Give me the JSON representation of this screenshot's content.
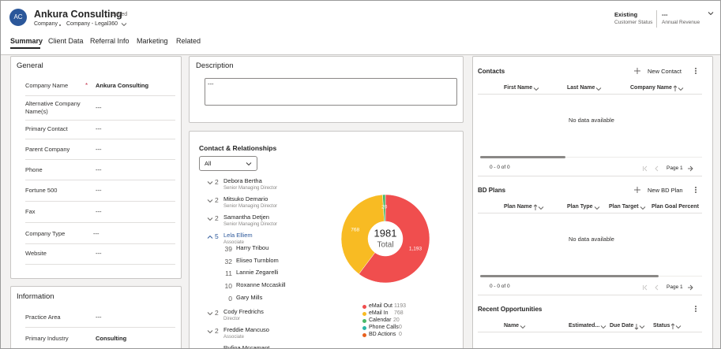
{
  "header": {
    "initials": "AC",
    "title": "Ankura Consulting",
    "status": "- Saved",
    "entity": "Company",
    "form": "Company - Legal360",
    "fields": [
      {
        "value": "Existing",
        "label": "Customer Status"
      },
      {
        "value": "---",
        "label": "Annual Revenue"
      }
    ]
  },
  "tabs": {
    "items": [
      "Summary",
      "Client Data",
      "Referral Info",
      "Marketing",
      "Related"
    ],
    "selected": 0
  },
  "general": {
    "title": "General",
    "required_mark": "*",
    "fields": [
      {
        "label": "Company Name",
        "value": "Ankura Consulting",
        "required": true
      },
      {
        "label": "Alternative Company Name(s)",
        "value": "---"
      },
      {
        "label": "Primary Contact",
        "value": "---"
      },
      {
        "label": "Parent Company",
        "value": "---"
      },
      {
        "label": "Phone",
        "value": "---"
      },
      {
        "label": "Fortune 500",
        "value": "---"
      },
      {
        "label": "Fax",
        "value": "---"
      },
      {
        "label": "Company Type",
        "value": "---"
      },
      {
        "label": "Website",
        "value": "---"
      }
    ]
  },
  "information": {
    "title": "Information",
    "fields": [
      {
        "label": "Practice Area",
        "value": "---"
      },
      {
        "label": "Primary Industry",
        "value": "Consulting"
      }
    ]
  },
  "description": {
    "title": "Description",
    "value": "---"
  },
  "contacts_relationships": {
    "title": "Contact & Relationships",
    "filter": "All",
    "people": [
      {
        "count": 2,
        "name": "Debora Bertha",
        "role": "Senior Managing Director",
        "expanded": false
      },
      {
        "count": 2,
        "name": "Mitsuko Demario",
        "role": "Senior Managing Director",
        "expanded": false
      },
      {
        "count": 2,
        "name": "Samantha Detjen",
        "role": "Senior Managing Director",
        "expanded": false
      },
      {
        "count": 5,
        "name": "Lela Elliem",
        "role": "Associate",
        "expanded": true,
        "children": [
          {
            "count": 39,
            "name": "Harry Tribou"
          },
          {
            "count": 32,
            "name": "Eliseo Turnblom"
          },
          {
            "count": 11,
            "name": "Lannie Zegarelli"
          },
          {
            "count": 10,
            "name": "Roxanne Mccaskill"
          },
          {
            "count": 0,
            "name": "Gary Mills"
          }
        ]
      },
      {
        "count": 2,
        "name": "Cody Fredrichs",
        "role": "Director",
        "expanded": false
      },
      {
        "count": 2,
        "name": "Freddie Mancuso",
        "role": "Associate",
        "expanded": false
      },
      {
        "name": "Rufina Mccamant"
      }
    ]
  },
  "chart_data": {
    "type": "donut",
    "total": 1981,
    "total_label": "Total",
    "categories": [
      "eMail Out",
      "eMail In",
      "Calendar",
      "Phone Calls",
      "BD Actions"
    ],
    "values": [
      1193,
      768,
      20,
      0,
      0
    ],
    "value_labels": [
      "1,193",
      "768",
      "20",
      null,
      null
    ],
    "colors": [
      "#f04e4e",
      "#f8bb23",
      "#4ab868",
      "#29b5a5",
      "#e8611e"
    ]
  },
  "contacts": {
    "title": "Contacts",
    "action": "New Contact",
    "columns": [
      {
        "label": "First Name",
        "sort": null,
        "menu": true
      },
      {
        "label": "Last Name",
        "sort": null,
        "menu": true
      },
      {
        "label": "Company Name",
        "sort": "asc",
        "menu": true
      }
    ],
    "empty": "No data available",
    "range": "0 - 0 of 0",
    "page": "Page 1"
  },
  "bd_plans": {
    "title": "BD Plans",
    "action": "New BD Plan",
    "columns": [
      {
        "label": "Plan Name",
        "sort": "asc",
        "menu": true
      },
      {
        "label": "Plan Type",
        "sort": null,
        "menu": true
      },
      {
        "label": "Plan Target",
        "sort": null,
        "menu": true
      },
      {
        "label": "Plan Goal Percent",
        "sort": null,
        "menu": false
      }
    ],
    "empty": "No data available",
    "range": "0 - 0 of 0",
    "page": "Page 1"
  },
  "recent_opportunities": {
    "title": "Recent Opportunities",
    "columns": [
      {
        "label": "Name",
        "sort": null,
        "menu": true
      },
      {
        "label": "Estimated...",
        "sort": null,
        "menu": true
      },
      {
        "label": "Due Date",
        "sort": "desc",
        "menu": true
      },
      {
        "label": "Status",
        "sort": "asc",
        "menu": true
      }
    ]
  }
}
